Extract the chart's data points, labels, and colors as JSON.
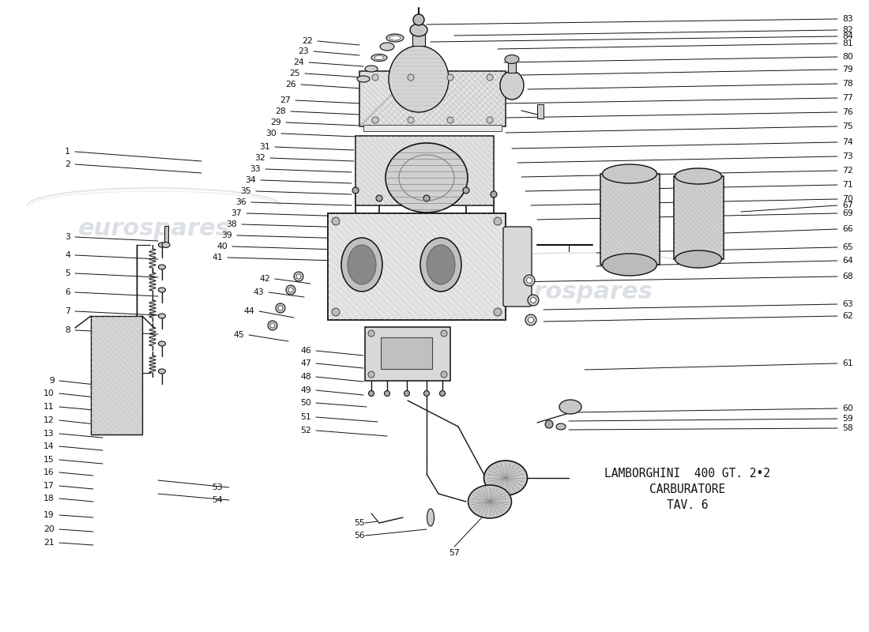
{
  "title_line1": "LAMBORGHINI  400 GT. 2•2",
  "title_line2": "CARBURATORE",
  "title_line3": "TAV. 6",
  "background_color": "#ffffff",
  "watermark_text": "eurospares",
  "watermark_color": "#c0c8d0",
  "text_color": "#111111",
  "fig_width": 11.0,
  "fig_height": 8.0,
  "dpi": 100,
  "label_fontsize": 7.8,
  "title_fontsize": 10.5
}
